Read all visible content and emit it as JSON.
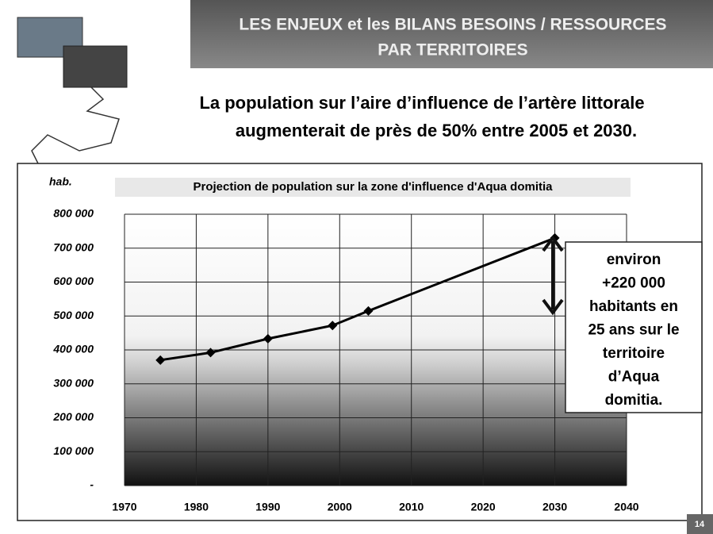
{
  "header": {
    "title": [
      "LES ENJEUX et les BILANS BESOINS / RESSOURCES",
      "PAR TERRITOIRES"
    ]
  },
  "headline": [
    "La population sur l’aire d’influence de l’artère littorale",
    "augmenterait de près de 50% entre 2005 et 2030."
  ],
  "page_number": "14",
  "chart_data": {
    "type": "line",
    "title": "Projection de population sur la zone d'influence d'Aqua domitia",
    "y_label": "hab.",
    "x": [
      1975,
      1982,
      1990,
      1999,
      2004,
      2030
    ],
    "values": [
      370000,
      392000,
      433000,
      472000,
      515000,
      730000
    ],
    "color": "#000000",
    "xlim": [
      1970,
      2040
    ],
    "xticks": [
      1970,
      1980,
      1990,
      2000,
      2010,
      2020,
      2030,
      2040
    ],
    "ylim": [
      0,
      800000
    ],
    "yticks": [
      {
        "value": 0,
        "label": "-"
      },
      {
        "value": 100000,
        "label": "100 000"
      },
      {
        "value": 200000,
        "label": "200 000"
      },
      {
        "value": 300000,
        "label": "300 000"
      },
      {
        "value": 400000,
        "label": "400 000"
      },
      {
        "value": 500000,
        "label": "500 000"
      },
      {
        "value": 600000,
        "label": "600 000"
      },
      {
        "value": 700000,
        "label": "700 000"
      },
      {
        "value": 800000,
        "label": "800 000"
      }
    ],
    "grid": true,
    "annotation": [
      "environ",
      "+220 000",
      "habitants en",
      "25 ans sur le",
      "territoire",
      "d’Aqua",
      "domitia."
    ]
  }
}
